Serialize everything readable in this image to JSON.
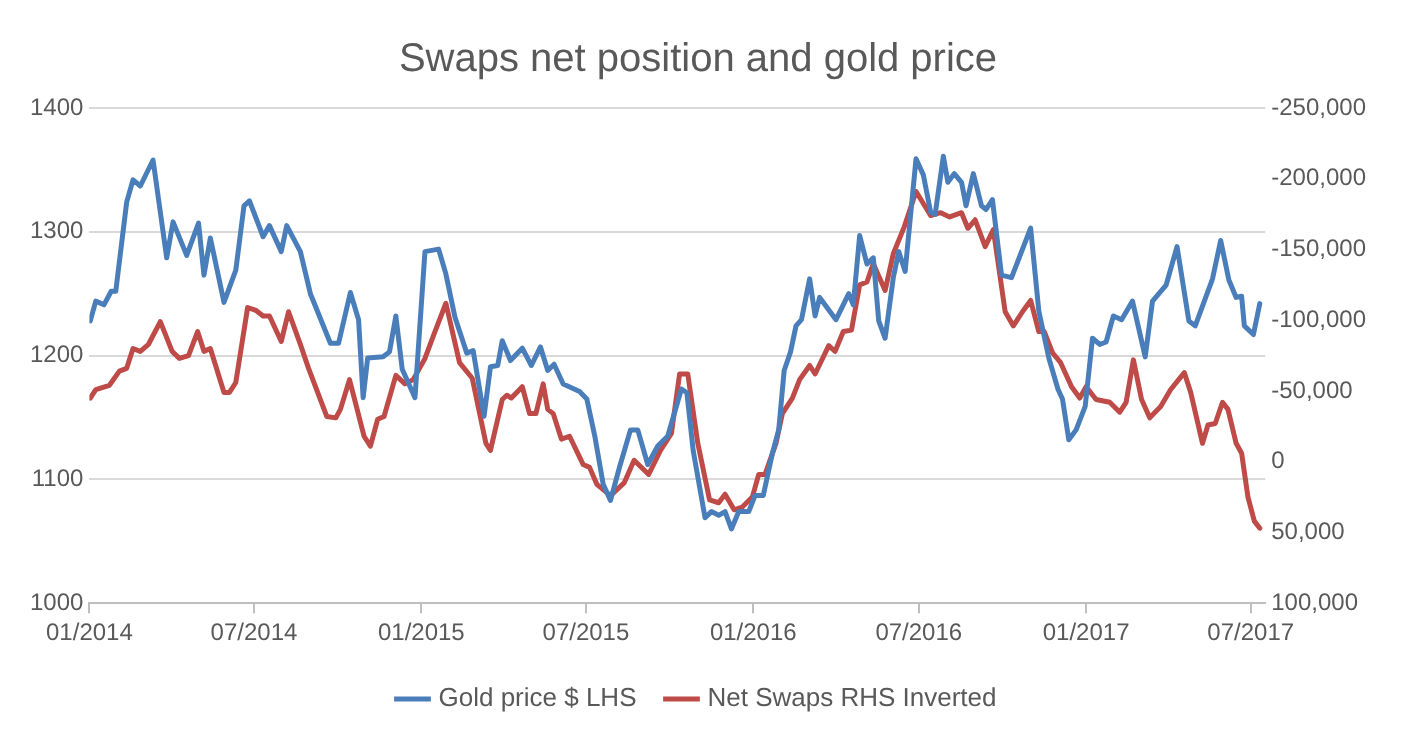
{
  "chart_data": {
    "type": "line",
    "title": "Swaps net position and gold price",
    "legend": "bottom",
    "grid": "y",
    "marker": "none",
    "line_style": "solid",
    "xlim": [
      "2014-01-01",
      "2017-07-17"
    ],
    "xticks": [
      {
        "value": "2014-01-01",
        "label": "01/2014"
      },
      {
        "value": "2014-07-01",
        "label": "07/2014"
      },
      {
        "value": "2015-01-01",
        "label": "01/2015"
      },
      {
        "value": "2015-07-01",
        "label": "07/2015"
      },
      {
        "value": "2016-01-01",
        "label": "01/2016"
      },
      {
        "value": "2016-07-01",
        "label": "07/2016"
      },
      {
        "value": "2017-01-01",
        "label": "01/2017"
      },
      {
        "value": "2017-07-01",
        "label": "07/2017"
      }
    ],
    "ylim": [
      1000,
      1400
    ],
    "yticks": [
      1000,
      1100,
      1200,
      1300,
      1400
    ],
    "y2lim": [
      100000,
      -250000
    ],
    "y2ticks": [
      {
        "value": 100000,
        "label": "100,000"
      },
      {
        "value": 50000,
        "label": "50,000"
      },
      {
        "value": 0,
        "label": "0"
      },
      {
        "value": -50000,
        "label": "-50,000"
      },
      {
        "value": -100000,
        "label": "-100,000"
      },
      {
        "value": -150000,
        "label": "-150,000"
      },
      {
        "value": -200000,
        "label": "-200,000"
      },
      {
        "value": -250000,
        "label": "-250,000"
      }
    ],
    "series": [
      {
        "name": "Gold price $ LHS",
        "color": "#4a7ebb",
        "x": [
          "2014-01-02",
          "2014-01-08",
          "2014-01-17",
          "2014-01-25",
          "2014-01-30",
          "2014-02-11",
          "2014-02-18",
          "2014-02-26",
          "2014-03-12",
          "2014-03-27",
          "2014-04-03",
          "2014-04-18",
          "2014-05-01",
          "2014-05-07",
          "2014-05-14",
          "2014-05-29",
          "2014-06-11",
          "2014-06-20",
          "2014-06-26",
          "2014-07-11",
          "2014-07-18",
          "2014-07-31",
          "2014-08-06",
          "2014-08-21",
          "2014-09-01",
          "2014-09-23",
          "2014-10-02",
          "2014-10-15",
          "2014-10-24",
          "2014-10-29",
          "2014-11-03",
          "2014-11-20",
          "2014-11-27",
          "2014-12-04",
          "2014-12-11",
          "2014-12-25",
          "2015-01-05",
          "2015-01-20",
          "2015-01-28",
          "2015-02-07",
          "2015-02-20",
          "2015-02-27",
          "2015-03-11",
          "2015-03-18",
          "2015-03-26",
          "2015-03-31",
          "2015-04-09",
          "2015-04-22",
          "2015-05-02",
          "2015-05-12",
          "2015-05-20",
          "2015-05-27",
          "2015-06-06",
          "2015-06-24",
          "2015-07-02",
          "2015-07-11",
          "2015-07-20",
          "2015-07-28",
          "2015-08-07",
          "2015-08-19",
          "2015-08-27",
          "2015-09-07",
          "2015-09-18",
          "2015-09-29",
          "2015-10-14",
          "2015-10-20",
          "2015-10-27",
          "2015-11-09",
          "2015-11-16",
          "2015-11-24",
          "2015-12-01",
          "2015-12-08",
          "2015-12-16",
          "2015-12-27",
          "2016-01-03",
          "2016-01-12",
          "2016-01-22",
          "2016-01-29",
          "2016-02-04",
          "2016-02-11",
          "2016-02-17",
          "2016-02-23",
          "2016-03-03",
          "2016-03-09",
          "2016-03-14",
          "2016-04-01",
          "2016-04-15",
          "2016-04-20",
          "2016-04-27",
          "2016-05-05",
          "2016-05-12",
          "2016-05-18",
          "2016-05-25",
          "2016-06-03",
          "2016-06-09",
          "2016-06-16",
          "2016-06-28",
          "2016-07-06",
          "2016-07-14",
          "2016-07-19",
          "2016-07-28",
          "2016-08-02",
          "2016-08-09",
          "2016-08-17",
          "2016-08-22",
          "2016-08-30",
          "2016-09-08",
          "2016-09-13",
          "2016-09-20",
          "2016-09-30",
          "2016-10-11",
          "2016-11-01",
          "2016-11-10",
          "2016-11-21",
          "2016-12-01",
          "2016-12-06",
          "2016-12-13",
          "2016-12-21",
          "2016-12-31",
          "2017-01-08",
          "2017-01-16",
          "2017-01-23",
          "2017-01-31",
          "2017-02-09",
          "2017-02-21",
          "2017-03-07",
          "2017-03-15",
          "2017-03-30",
          "2017-04-11",
          "2017-04-24",
          "2017-05-01",
          "2017-05-20",
          "2017-05-29",
          "2017-06-07",
          "2017-06-15",
          "2017-06-21",
          "2017-06-24",
          "2017-07-04",
          "2017-07-11"
        ],
        "values": [
          1228,
          1244,
          1241,
          1252,
          1252,
          1324,
          1342,
          1337,
          1358,
          1279,
          1308,
          1281,
          1307,
          1265,
          1295,
          1243,
          1269,
          1321,
          1325,
          1296,
          1305,
          1284,
          1305,
          1284,
          1250,
          1210,
          1210,
          1251,
          1229,
          1166,
          1198,
          1199,
          1203,
          1232,
          1189,
          1166,
          1284,
          1286,
          1266,
          1231,
          1202,
          1204,
          1151,
          1191,
          1192,
          1212,
          1196,
          1206,
          1192,
          1207,
          1188,
          1193,
          1177,
          1171,
          1165,
          1134,
          1096,
          1083,
          1110,
          1140,
          1140,
          1112,
          1127,
          1135,
          1173,
          1170,
          1123,
          1069,
          1074,
          1071,
          1074,
          1060,
          1074,
          1074,
          1087,
          1087,
          1121,
          1140,
          1188,
          1203,
          1224,
          1229,
          1262,
          1232,
          1247,
          1229,
          1250,
          1241,
          1297,
          1274,
          1279,
          1228,
          1214,
          1263,
          1284,
          1268,
          1359,
          1346,
          1316,
          1314,
          1361,
          1340,
          1347,
          1340,
          1321,
          1347,
          1321,
          1318,
          1326,
          1265,
          1263,
          1303,
          1236,
          1198,
          1173,
          1165,
          1132,
          1140,
          1159,
          1214,
          1209,
          1211,
          1232,
          1229,
          1244,
          1199,
          1244,
          1257,
          1288,
          1228,
          1224,
          1262,
          1293,
          1261,
          1247,
          1248,
          1224,
          1217,
          1242
        ]
      },
      {
        "name": "Net Swaps RHS Inverted",
        "color": "#be4b48",
        "axis": "y2",
        "x": [
          "2014-01-02",
          "2014-01-08",
          "2014-01-23",
          "2014-02-03",
          "2014-02-11",
          "2014-02-18",
          "2014-02-26",
          "2014-03-07",
          "2014-03-20",
          "2014-04-02",
          "2014-04-10",
          "2014-04-20",
          "2014-04-30",
          "2014-05-07",
          "2014-05-14",
          "2014-05-29",
          "2014-06-04",
          "2014-06-11",
          "2014-06-24",
          "2014-07-03",
          "2014-07-11",
          "2014-07-18",
          "2014-07-31",
          "2014-08-08",
          "2014-08-21",
          "2014-08-30",
          "2014-09-19",
          "2014-09-29",
          "2014-10-04",
          "2014-10-14",
          "2014-10-30",
          "2014-11-06",
          "2014-11-14",
          "2014-11-21",
          "2014-12-04",
          "2014-12-14",
          "2014-12-23",
          "2015-01-05",
          "2015-01-16",
          "2015-01-28",
          "2015-02-12",
          "2015-02-26",
          "2015-03-13",
          "2015-03-18",
          "2015-03-31",
          "2015-04-05",
          "2015-04-10",
          "2015-04-22",
          "2015-04-30",
          "2015-05-07",
          "2015-05-15",
          "2015-05-20",
          "2015-05-26",
          "2015-06-04",
          "2015-06-13",
          "2015-06-28",
          "2015-07-05",
          "2015-07-13",
          "2015-07-28",
          "2015-08-12",
          "2015-08-23",
          "2015-09-08",
          "2015-09-21",
          "2015-10-03",
          "2015-10-12",
          "2015-10-21",
          "2015-11-01",
          "2015-11-14",
          "2015-11-24",
          "2015-12-01",
          "2015-12-11",
          "2015-12-20",
          "2015-12-31",
          "2016-01-07",
          "2016-01-14",
          "2016-01-26",
          "2016-02-02",
          "2016-02-13",
          "2016-02-21",
          "2016-03-03",
          "2016-03-09",
          "2016-03-24",
          "2016-03-31",
          "2016-04-09",
          "2016-04-18",
          "2016-04-27",
          "2016-05-05",
          "2016-05-12",
          "2016-05-25",
          "2016-06-03",
          "2016-06-15",
          "2016-06-28",
          "2016-07-14",
          "2016-07-25",
          "2016-08-04",
          "2016-08-17",
          "2016-08-24",
          "2016-09-01",
          "2016-09-12",
          "2016-09-21",
          "2016-10-04",
          "2016-10-13",
          "2016-10-23",
          "2016-11-01",
          "2016-11-10",
          "2016-11-16",
          "2016-11-25",
          "2016-12-04",
          "2016-12-16",
          "2016-12-25",
          "2017-01-01",
          "2017-01-12",
          "2017-01-27",
          "2017-02-07",
          "2017-02-14",
          "2017-02-22",
          "2017-03-03",
          "2017-03-12",
          "2017-03-24",
          "2017-04-04",
          "2017-04-19",
          "2017-04-26",
          "2017-05-09",
          "2017-05-15",
          "2017-05-23",
          "2017-05-31",
          "2017-06-06",
          "2017-06-15",
          "2017-06-21",
          "2017-06-28",
          "2017-07-05",
          "2017-07-11"
        ],
        "values": [
          -45000,
          -51000,
          -54000,
          -64000,
          -66000,
          -80000,
          -78000,
          -83000,
          -99000,
          -78000,
          -73000,
          -75000,
          -92000,
          -78000,
          -80000,
          -49000,
          -49000,
          -56000,
          -109000,
          -107000,
          -103000,
          -103000,
          -85000,
          -106000,
          -83000,
          -66000,
          -32000,
          -31000,
          -37000,
          -58000,
          -18000,
          -11000,
          -30000,
          -32000,
          -61000,
          -55000,
          -58000,
          -73000,
          -92000,
          -112000,
          -70000,
          -59000,
          -13000,
          -8000,
          -44000,
          -47000,
          -45000,
          -53000,
          -34000,
          -34000,
          -55000,
          -37000,
          -34000,
          -16000,
          -18000,
          2000,
          4000,
          16000,
          24000,
          15000,
          -1000,
          9000,
          -8000,
          -20000,
          -62000,
          -62000,
          -13000,
          27000,
          29000,
          23000,
          34000,
          32000,
          25000,
          9000,
          9000,
          -13000,
          -34000,
          -45000,
          -58000,
          -68000,
          -62000,
          -82000,
          -78000,
          -92000,
          -93000,
          -125000,
          -127000,
          -140000,
          -121000,
          -147000,
          -166000,
          -191000,
          -174000,
          -176000,
          -173000,
          -176000,
          -165000,
          -171000,
          -152000,
          -164000,
          -106000,
          -96000,
          -106000,
          -114000,
          -92000,
          -92000,
          -77000,
          -70000,
          -53000,
          -45000,
          -53000,
          -44000,
          -42000,
          -35000,
          -42000,
          -72000,
          -44000,
          -31000,
          -39000,
          -51000,
          -63000,
          -49000,
          -13000,
          -26000,
          -27000,
          -42000,
          -37000,
          -13000,
          -6000,
          25000,
          42000,
          47000
        ]
      }
    ]
  }
}
